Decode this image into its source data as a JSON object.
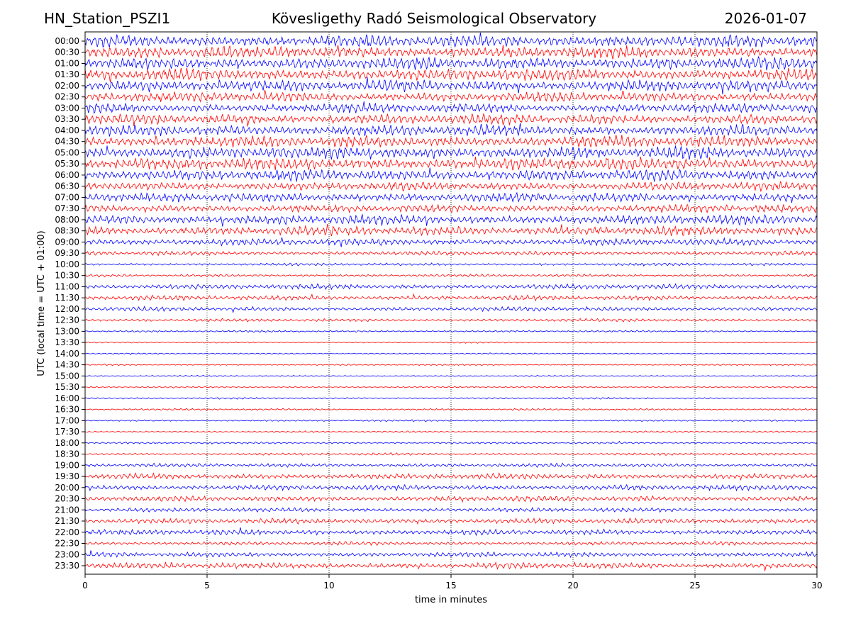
{
  "header": {
    "station": "HN_Station_PSZI1",
    "observatory": "Kövesligethy Radó Seismological Observatory",
    "date": "2026-01-07"
  },
  "chart_data": {
    "type": "line",
    "subtype": "helicorder",
    "xlabel": "time in minutes",
    "ylabel": "UTC (local time = UTC + 01:00)",
    "xlim": [
      0,
      30
    ],
    "x_ticks": [
      0,
      5,
      10,
      15,
      20,
      25,
      30
    ],
    "grid": "vertical dotted lines at each x tick",
    "colors": [
      "#0000ff",
      "#ff0000"
    ],
    "rows": [
      {
        "label": "00:00",
        "amplitude": 1.0
      },
      {
        "label": "00:30",
        "amplitude": 1.0
      },
      {
        "label": "01:00",
        "amplitude": 1.0
      },
      {
        "label": "01:30",
        "amplitude": 1.0
      },
      {
        "label": "02:00",
        "amplitude": 0.95
      },
      {
        "label": "02:30",
        "amplitude": 0.8
      },
      {
        "label": "03:00",
        "amplitude": 0.8
      },
      {
        "label": "03:30",
        "amplitude": 0.85
      },
      {
        "label": "04:00",
        "amplitude": 0.9
      },
      {
        "label": "04:30",
        "amplitude": 0.95
      },
      {
        "label": "05:00",
        "amplitude": 1.0
      },
      {
        "label": "05:30",
        "amplitude": 1.0
      },
      {
        "label": "06:00",
        "amplitude": 0.9
      },
      {
        "label": "06:30",
        "amplitude": 0.7
      },
      {
        "label": "07:00",
        "amplitude": 0.75
      },
      {
        "label": "07:30",
        "amplitude": 0.65
      },
      {
        "label": "08:00",
        "amplitude": 0.8
      },
      {
        "label": "08:30",
        "amplitude": 0.75
      },
      {
        "label": "09:00",
        "amplitude": 0.55
      },
      {
        "label": "09:30",
        "amplitude": 0.35
      },
      {
        "label": "10:00",
        "amplitude": 0.22
      },
      {
        "label": "10:30",
        "amplitude": 0.22
      },
      {
        "label": "11:00",
        "amplitude": 0.4
      },
      {
        "label": "11:30",
        "amplitude": 0.4
      },
      {
        "label": "12:00",
        "amplitude": 0.35
      },
      {
        "label": "12:30",
        "amplitude": 0.25
      },
      {
        "label": "13:00",
        "amplitude": 0.15
      },
      {
        "label": "13:30",
        "amplitude": 0.12
      },
      {
        "label": "14:00",
        "amplitude": 0.1
      },
      {
        "label": "14:30",
        "amplitude": 0.12
      },
      {
        "label": "15:00",
        "amplitude": 0.1
      },
      {
        "label": "15:30",
        "amplitude": 0.12
      },
      {
        "label": "16:00",
        "amplitude": 0.14
      },
      {
        "label": "16:30",
        "amplitude": 0.15
      },
      {
        "label": "17:00",
        "amplitude": 0.14
      },
      {
        "label": "17:30",
        "amplitude": 0.14
      },
      {
        "label": "18:00",
        "amplitude": 0.15
      },
      {
        "label": "18:30",
        "amplitude": 0.2
      },
      {
        "label": "19:00",
        "amplitude": 0.3
      },
      {
        "label": "19:30",
        "amplitude": 0.45
      },
      {
        "label": "20:00",
        "amplitude": 0.45
      },
      {
        "label": "20:30",
        "amplitude": 0.45
      },
      {
        "label": "21:00",
        "amplitude": 0.35
      },
      {
        "label": "21:30",
        "amplitude": 0.45
      },
      {
        "label": "22:00",
        "amplitude": 0.45
      },
      {
        "label": "22:30",
        "amplitude": 0.3
      },
      {
        "label": "23:00",
        "amplitude": 0.4
      },
      {
        "label": "23:30",
        "amplitude": 0.5
      }
    ]
  }
}
